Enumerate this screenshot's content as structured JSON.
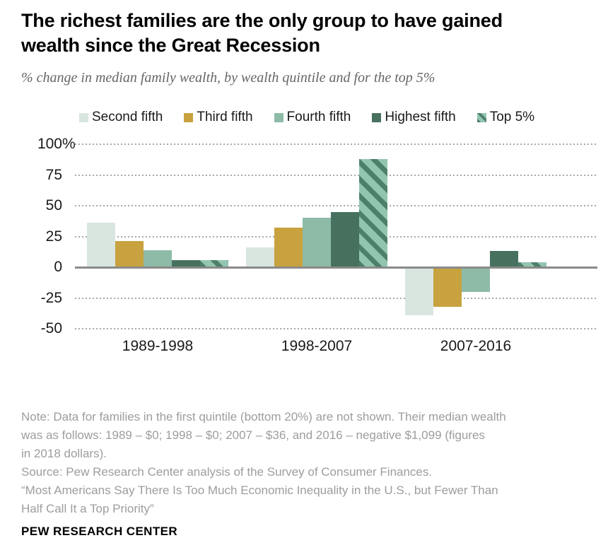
{
  "header": {
    "title_lines": [
      "The richest families are the only group to have gained",
      "wealth since the Great Recession"
    ],
    "subtitle": "% change in median family wealth, by wealth quintile and for the top 5%"
  },
  "chart_data": {
    "type": "bar",
    "categories": [
      "1989-1998",
      "1998-2007",
      "2007-2016"
    ],
    "series": [
      {
        "name": "Second fifth",
        "color": "#d9e6e0",
        "hatched": false,
        "values": [
          36,
          16,
          -39
        ]
      },
      {
        "name": "Third fifth",
        "color": "#c8a23f",
        "hatched": false,
        "values": [
          21,
          32,
          -32
        ]
      },
      {
        "name": "Fourth fifth",
        "color": "#8dbba8",
        "hatched": false,
        "values": [
          14,
          40,
          -20
        ]
      },
      {
        "name": "Highest fifth",
        "color": "#47705f",
        "hatched": false,
        "values": [
          6,
          45,
          13
        ]
      },
      {
        "name": "Top 5%",
        "color": "#92c5b0",
        "hatch_color": "#4e7f6b",
        "hatched": true,
        "values": [
          6,
          88,
          4
        ]
      }
    ],
    "title": "% change in median family wealth, by wealth quintile and for the top 5%",
    "xlabel": "",
    "ylabel": "",
    "ylim": [
      -50,
      100
    ],
    "yticks": [
      100,
      75,
      50,
      25,
      0,
      -25,
      -50
    ],
    "ytick_labels": [
      "100%",
      "75",
      "50",
      "25",
      "0",
      "-25",
      "-50"
    ],
    "grid": "dotted-horizontal",
    "legend_position": "top"
  },
  "footer": {
    "lines": [
      "Note: Data for families in the first quintile (bottom 20%) are not shown. Their median wealth",
      "was as follows: 1989 – $0; 1998 – $0; 2007 – $36, and 2016 – negative $1,099 (figures",
      "in 2018 dollars).",
      "Source: Pew Research Center analysis of the Survey of Consumer Finances.",
      "“Most Americans Say There Is Too Much Economic Inequality in the U.S., but Fewer Than",
      "Half Call It a Top Priority”"
    ],
    "brand": "PEW RESEARCH CENTER"
  }
}
